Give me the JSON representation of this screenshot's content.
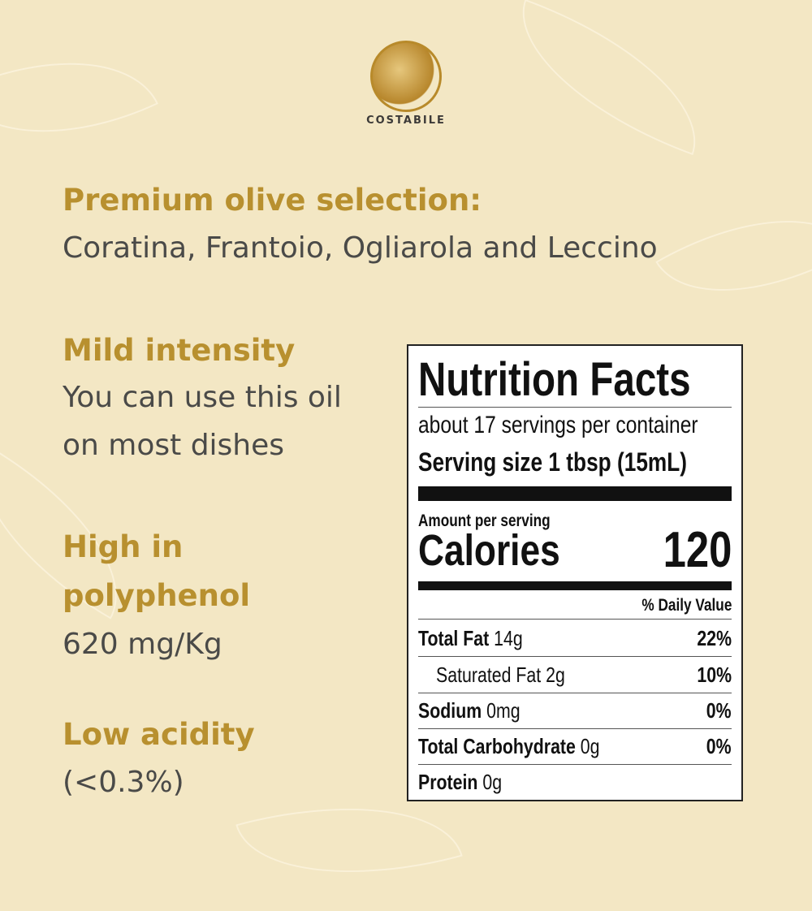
{
  "brand": {
    "name": "COSTABILE"
  },
  "features": [
    {
      "heading": "Premium olive selection:",
      "text": "Coratina, Frantoio, Ogliarola and Leccino"
    },
    {
      "heading": "Mild intensity",
      "text_lines": [
        "You can use this oil",
        "on most dishes"
      ]
    },
    {
      "heading_lines": [
        "High in",
        "polyphenol"
      ],
      "text": "620 mg/Kg"
    },
    {
      "heading": "Low acidity",
      "text": "(<0.3%)"
    }
  ],
  "nutrition": {
    "title": "Nutrition Facts",
    "servings": "about 17 servings per container",
    "serving_size": "Serving size 1 tbsp (15mL)",
    "amount_per_serving": "Amount per serving",
    "calories_label": "Calories",
    "calories": "120",
    "dv_header": "% Daily Value",
    "rows": [
      {
        "label": "Total Fat",
        "amount": "14g",
        "dv": "22%"
      },
      {
        "label": "Saturated Fat 2g",
        "amount": "",
        "dv": "10%"
      },
      {
        "label": "Sodium",
        "amount": "0mg",
        "dv": "0%"
      },
      {
        "label": "Total Carbohydrate",
        "amount": "0g",
        "dv": "0%"
      },
      {
        "label": "Protein",
        "amount": "0g",
        "dv": ""
      }
    ]
  },
  "colors": {
    "background": "#f3e7c4",
    "accent": "#b8902f",
    "text": "#4a4a48"
  }
}
